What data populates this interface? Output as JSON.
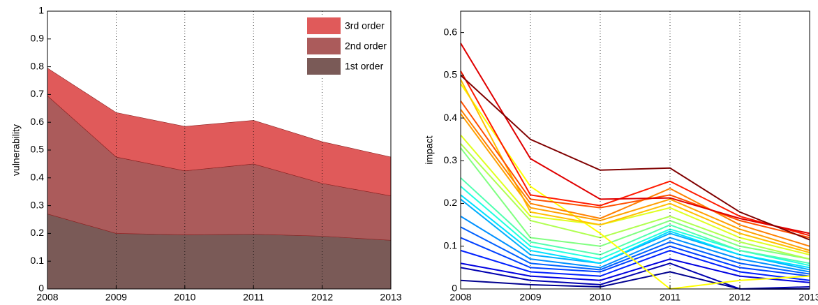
{
  "chart_data": [
    {
      "type": "area",
      "stacked": true,
      "ylabel": "vulnerability",
      "x": [
        2008,
        2009,
        2010,
        2011,
        2012,
        2013
      ],
      "xlim": [
        2008,
        2013
      ],
      "xticks": [
        2008,
        2009,
        2010,
        2011,
        2012,
        2013
      ],
      "ylim": [
        0,
        1
      ],
      "yticks": [
        0,
        0.1,
        0.2,
        0.3,
        0.4,
        0.5,
        0.6,
        0.7,
        0.8,
        0.9,
        1
      ],
      "grid": "x",
      "legend": "upper right",
      "series": [
        {
          "name": "1st order",
          "color": "#7a5a57",
          "values": [
            0.27,
            0.2,
            0.195,
            0.197,
            0.19,
            0.175
          ]
        },
        {
          "name": "2nd order",
          "color": "#ab5b5b",
          "values": [
            0.425,
            0.275,
            0.23,
            0.253,
            0.19,
            0.16
          ]
        },
        {
          "name": "3rd order",
          "color": "#e05a5a",
          "values": [
            0.1,
            0.16,
            0.16,
            0.157,
            0.15,
            0.14
          ]
        }
      ]
    },
    {
      "type": "line",
      "ylabel": "impact",
      "x": [
        2008,
        2009,
        2010,
        2011,
        2012,
        2013
      ],
      "xlim": [
        2008,
        2013
      ],
      "xticks": [
        2008,
        2009,
        2010,
        2011,
        2012,
        2013
      ],
      "ylim": [
        0,
        0.65
      ],
      "yticks": [
        0,
        0.1,
        0.2,
        0.3,
        0.4,
        0.5,
        0.6
      ],
      "grid": "x",
      "series": [
        {
          "color": "#00008f",
          "values": [
            0.02,
            0.01,
            0.005,
            0.04,
            0.0,
            0.0
          ]
        },
        {
          "color": "#0000b0",
          "values": [
            0.05,
            0.02,
            0.01,
            0.06,
            0.0,
            0.005
          ]
        },
        {
          "color": "#0000e0",
          "values": [
            0.06,
            0.03,
            0.02,
            0.07,
            0.03,
            0.015
          ]
        },
        {
          "color": "#0020ff",
          "values": [
            0.09,
            0.04,
            0.03,
            0.09,
            0.04,
            0.02
          ]
        },
        {
          "color": "#0040ff",
          "values": [
            0.12,
            0.05,
            0.04,
            0.1,
            0.05,
            0.03
          ]
        },
        {
          "color": "#0060ff",
          "values": [
            0.145,
            0.06,
            0.045,
            0.11,
            0.06,
            0.035
          ]
        },
        {
          "color": "#0090ff",
          "values": [
            0.17,
            0.07,
            0.05,
            0.12,
            0.07,
            0.04
          ]
        },
        {
          "color": "#00b0ff",
          "values": [
            0.21,
            0.08,
            0.06,
            0.13,
            0.08,
            0.045
          ]
        },
        {
          "color": "#00e0ff",
          "values": [
            0.22,
            0.09,
            0.06,
            0.135,
            0.08,
            0.05
          ]
        },
        {
          "color": "#20ffe0",
          "values": [
            0.24,
            0.1,
            0.07,
            0.14,
            0.09,
            0.055
          ]
        },
        {
          "color": "#50ffb0",
          "values": [
            0.26,
            0.11,
            0.08,
            0.15,
            0.09,
            0.06
          ]
        },
        {
          "color": "#80ff80",
          "values": [
            0.33,
            0.12,
            0.1,
            0.16,
            0.1,
            0.07
          ]
        },
        {
          "color": "#b0ff50",
          "values": [
            0.34,
            0.16,
            0.12,
            0.17,
            0.11,
            0.07
          ]
        },
        {
          "color": "#e0ff20",
          "values": [
            0.36,
            0.17,
            0.15,
            0.19,
            0.12,
            0.08
          ]
        },
        {
          "color": "#ffff00",
          "values": [
            0.48,
            0.24,
            0.13,
            0.0,
            0.02,
            0.03
          ]
        },
        {
          "color": "#ffc000",
          "values": [
            0.49,
            0.18,
            0.15,
            0.2,
            0.13,
            0.085
          ]
        },
        {
          "color": "#ffa000",
          "values": [
            0.41,
            0.19,
            0.16,
            0.21,
            0.14,
            0.09
          ]
        },
        {
          "color": "#ff8000",
          "values": [
            0.42,
            0.2,
            0.165,
            0.235,
            0.15,
            0.1
          ]
        },
        {
          "color": "#ff5000",
          "values": [
            0.44,
            0.21,
            0.19,
            0.22,
            0.16,
            0.12
          ]
        },
        {
          "color": "#ff1a00",
          "values": [
            0.51,
            0.22,
            0.195,
            0.252,
            0.17,
            0.125
          ]
        },
        {
          "color": "#e00000",
          "values": [
            0.575,
            0.305,
            0.21,
            0.213,
            0.165,
            0.13
          ]
        },
        {
          "color": "#800000",
          "values": [
            0.5,
            0.35,
            0.278,
            0.283,
            0.18,
            0.115
          ]
        }
      ]
    }
  ]
}
